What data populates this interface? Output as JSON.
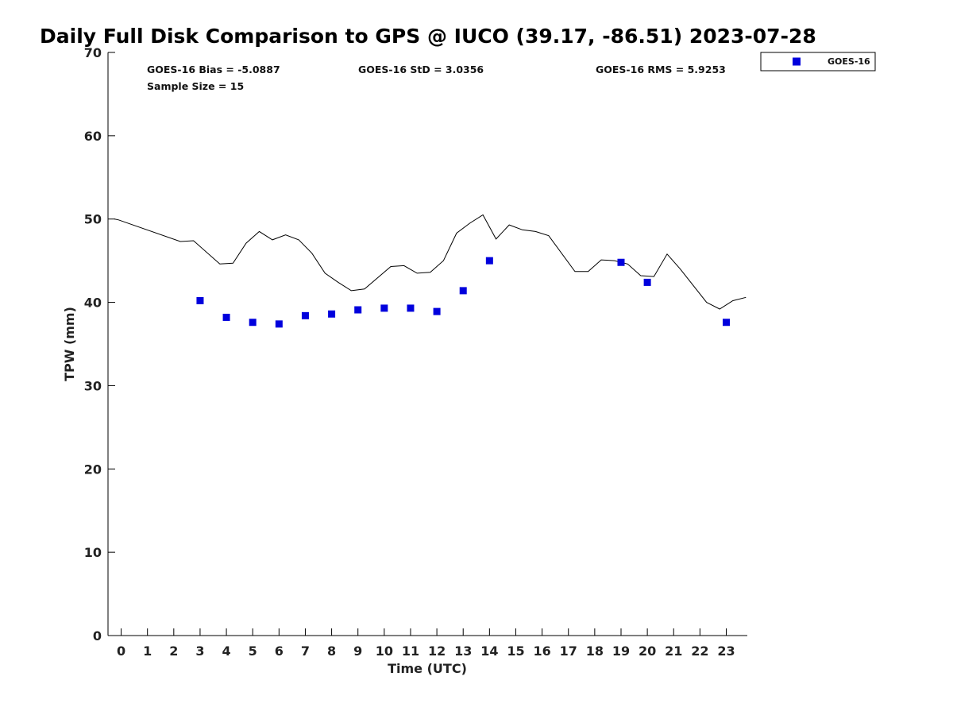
{
  "chart_data": {
    "type": "scatter",
    "title": "Daily Full Disk Comparison to GPS @ IUCO (39.17, -86.51) 2023-07-28",
    "xlabel": "Time (UTC)",
    "ylabel": "TPW (mm)",
    "xlim": [
      -0.5,
      23.8
    ],
    "ylim": [
      0,
      70
    ],
    "x_ticks": [
      0,
      1,
      2,
      3,
      4,
      5,
      6,
      7,
      8,
      9,
      10,
      11,
      12,
      13,
      14,
      15,
      16,
      17,
      18,
      19,
      20,
      21,
      22,
      23
    ],
    "y_ticks": [
      0,
      10,
      20,
      30,
      40,
      50,
      60,
      70
    ],
    "stats": [
      "GOES-16 Bias = -5.0887",
      "GOES-16 StD = 3.0356",
      "GOES-16 RMS = 5.9253",
      "Sample Size = 15"
    ],
    "legend": {
      "position": "top-right-outside",
      "entries": [
        "GOES-16"
      ]
    },
    "series": [
      {
        "name": "GOES-16",
        "kind": "scatter",
        "marker": "square",
        "color": "#0000dd",
        "points": [
          [
            3,
            40.2
          ],
          [
            4,
            38.2
          ],
          [
            5,
            37.6
          ],
          [
            6,
            37.4
          ],
          [
            7,
            38.4
          ],
          [
            8,
            38.6
          ],
          [
            9,
            39.1
          ],
          [
            10,
            39.3
          ],
          [
            11,
            39.3
          ],
          [
            12,
            38.9
          ],
          [
            13,
            41.4
          ],
          [
            14,
            45.0
          ],
          [
            19,
            44.8
          ],
          [
            20,
            42.4
          ],
          [
            23,
            37.6
          ]
        ]
      },
      {
        "kind": "line",
        "color": "#000000",
        "points": [
          [
            -0.25,
            50.0
          ],
          [
            -0.1,
            49.9
          ],
          [
            2.25,
            47.3
          ],
          [
            2.75,
            47.4
          ],
          [
            3.75,
            44.6
          ],
          [
            4.25,
            44.7
          ],
          [
            4.75,
            47.1
          ],
          [
            5.25,
            48.5
          ],
          [
            5.75,
            47.5
          ],
          [
            6.25,
            48.1
          ],
          [
            6.75,
            47.5
          ],
          [
            7.25,
            45.9
          ],
          [
            7.75,
            43.5
          ],
          [
            8.25,
            42.4
          ],
          [
            8.75,
            41.4
          ],
          [
            9.25,
            41.6
          ],
          [
            10.25,
            44.3
          ],
          [
            10.75,
            44.4
          ],
          [
            11.25,
            43.5
          ],
          [
            11.75,
            43.6
          ],
          [
            12.25,
            45.0
          ],
          [
            12.75,
            48.3
          ],
          [
            13.25,
            49.5
          ],
          [
            13.75,
            50.5
          ],
          [
            14.25,
            47.6
          ],
          [
            14.75,
            49.3
          ],
          [
            15.25,
            48.7
          ],
          [
            15.75,
            48.5
          ],
          [
            16.25,
            48.0
          ],
          [
            17.25,
            43.7
          ],
          [
            17.75,
            43.7
          ],
          [
            18.25,
            45.1
          ],
          [
            18.75,
            45.0
          ],
          [
            19.25,
            44.6
          ],
          [
            19.75,
            43.2
          ],
          [
            20.25,
            43.1
          ],
          [
            20.75,
            45.8
          ],
          [
            21.25,
            44.0
          ],
          [
            22.25,
            40.0
          ],
          [
            22.75,
            39.2
          ],
          [
            23.25,
            40.2
          ],
          [
            23.75,
            40.6
          ]
        ]
      }
    ]
  }
}
